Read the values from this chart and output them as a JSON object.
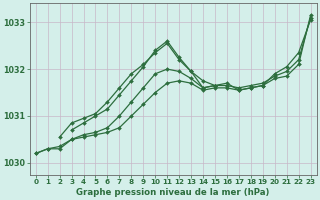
{
  "title": "Graphe pression niveau de la mer (hPa)",
  "bg_color": "#d4efea",
  "grid_color": "#c8b8c8",
  "line_color": "#2d6e3e",
  "xlim": [
    -0.5,
    23.5
  ],
  "ylim": [
    1029.75,
    1033.4
  ],
  "yticks": [
    1030,
    1031,
    1032,
    1033
  ],
  "xticks": [
    0,
    1,
    2,
    3,
    4,
    5,
    6,
    7,
    8,
    9,
    10,
    11,
    12,
    13,
    14,
    15,
    16,
    17,
    18,
    19,
    20,
    21,
    22,
    23
  ],
  "lines": [
    {
      "x": [
        0,
        1,
        2,
        3,
        4,
        5,
        6,
        7,
        8,
        9,
        10,
        11,
        12,
        13,
        14,
        15,
        16,
        17,
        18,
        19,
        20,
        21,
        22,
        23
      ],
      "y": [
        1030.2,
        1030.3,
        1030.3,
        1030.5,
        1030.55,
        1030.6,
        1030.65,
        1030.75,
        1031.0,
        1031.25,
        1031.5,
        1031.7,
        1031.75,
        1031.7,
        1031.55,
        1031.6,
        1031.6,
        1031.55,
        1031.6,
        1031.65,
        1031.8,
        1031.85,
        1032.1,
        1033.15
      ]
    },
    {
      "x": [
        0,
        1,
        2,
        3,
        4,
        5,
        6,
        7,
        8,
        9,
        10,
        11,
        12,
        13,
        14,
        15,
        16,
        17,
        18,
        19,
        20,
        21,
        22,
        23
      ],
      "y": [
        1030.2,
        1030.3,
        1030.35,
        1030.5,
        1030.6,
        1030.65,
        1030.75,
        1031.0,
        1031.3,
        1031.6,
        1031.9,
        1032.0,
        1031.95,
        1031.8,
        1031.6,
        1031.65,
        1031.65,
        1031.6,
        1031.65,
        1031.7,
        1031.85,
        1031.95,
        1032.2,
        1033.1
      ]
    },
    {
      "x": [
        2,
        3,
        4,
        5,
        6,
        7,
        8,
        9,
        10,
        11,
        12,
        13,
        14,
        15
      ],
      "y": [
        1030.55,
        1030.85,
        1030.95,
        1031.05,
        1031.3,
        1031.6,
        1031.9,
        1032.1,
        1032.35,
        1032.55,
        1032.2,
        1031.95,
        1031.75,
        1031.65
      ]
    },
    {
      "x": [
        3,
        4,
        5,
        6,
        7,
        8,
        9,
        10,
        11,
        12,
        13,
        14,
        15,
        16,
        17,
        18,
        19,
        20,
        21,
        22,
        23
      ],
      "y": [
        1030.7,
        1030.85,
        1031.0,
        1031.15,
        1031.45,
        1031.75,
        1032.05,
        1032.4,
        1032.6,
        1032.25,
        1031.95,
        1031.6,
        1031.65,
        1031.7,
        1031.55,
        1031.6,
        1031.65,
        1031.9,
        1032.05,
        1032.35,
        1033.05
      ]
    }
  ]
}
